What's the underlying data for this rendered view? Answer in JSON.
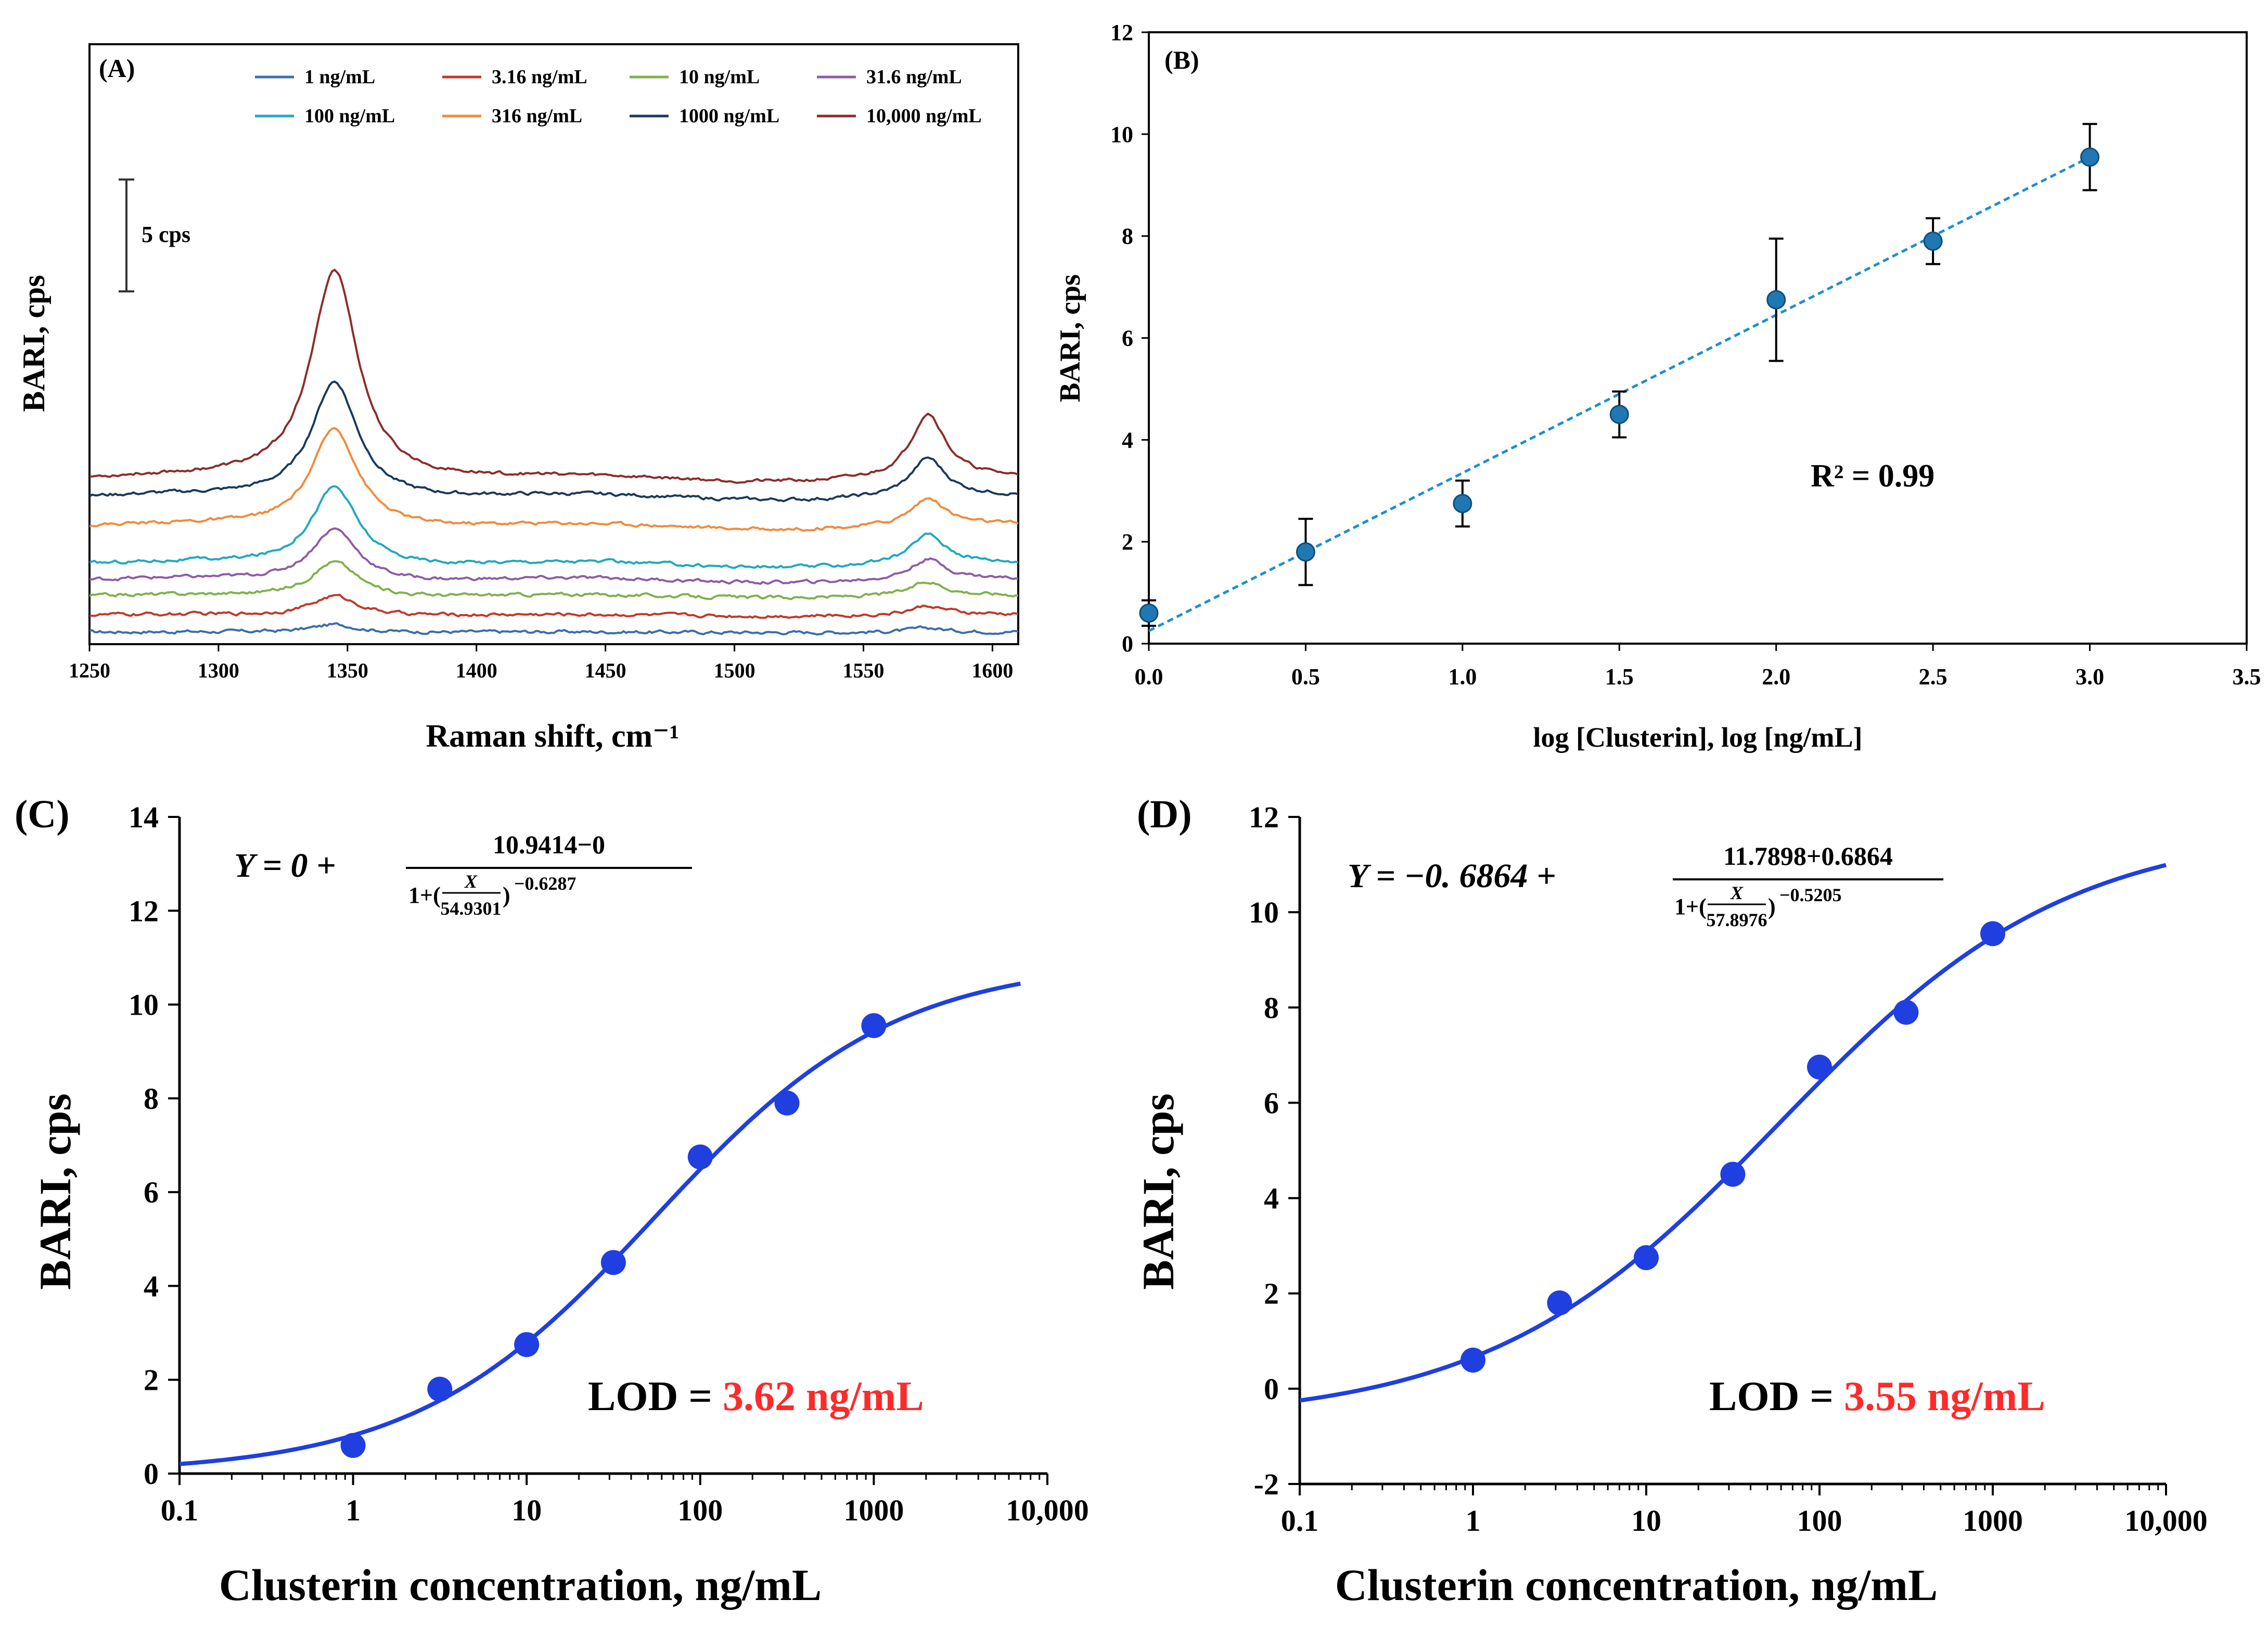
{
  "colors": {
    "axis": "#000000",
    "fit_blue": "#1f3fe0",
    "point_blue": "#1f3fe0",
    "panel_b_point": "#1f78b4",
    "panel_b_line": "#1f8fd0",
    "lod_red": "#ff2a2a"
  },
  "panels": {
    "a": {
      "label": "(A)",
      "scale_bar_label": "5 cps",
      "scale_bar_value": 5
    },
    "b": {
      "label": "(B)",
      "r2_label": "R² =  0.99"
    },
    "c": {
      "label": "(C)",
      "eq_left": "Y = 0 +",
      "eq_num": "10.9414−0",
      "eq_den_prefix": "1+(",
      "eq_den_x": "X",
      "eq_den_sub": "54.9301",
      "eq_den_suffix": ")",
      "eq_den_exp": "−0.6287",
      "lod_label": "LOD = ",
      "lod_value": "3.62 ng/mL"
    },
    "d": {
      "label": "(D)",
      "eq_left": "Y = −0. 6864 +",
      "eq_num": "11.7898+0.6864",
      "eq_den_prefix": "1+(",
      "eq_den_x": "X",
      "eq_den_sub": "57.8976",
      "eq_den_suffix": ")",
      "eq_den_exp": "−0.5205",
      "lod_label": "LOD = ",
      "lod_value": "3.55 ng/mL"
    }
  },
  "chart_data": [
    {
      "panel": "A",
      "type": "line",
      "title": "",
      "xlabel": "Raman shift, cm⁻¹",
      "ylabel": "BARI, cps",
      "xlim": [
        1250,
        1610
      ],
      "xticks": [
        "1250",
        "1300",
        "1350",
        "1400",
        "1450",
        "1500",
        "1550",
        "1600"
      ],
      "legend_position": "top",
      "peaks_cm": [
        1345,
        1575
      ],
      "series": [
        {
          "name": "1 ng/mL",
          "color": "#3a6fa8",
          "offset": 0.0,
          "peak1": 0.35,
          "peak2": 0.18
        },
        {
          "name": "3.16 ng/mL",
          "color": "#c0392b",
          "offset": 0.75,
          "peak1": 0.9,
          "peak2": 0.4
        },
        {
          "name": "10 ng/mL",
          "color": "#7fb24a",
          "offset": 1.6,
          "peak1": 1.6,
          "peak2": 0.6
        },
        {
          "name": "31.6 ng/mL",
          "color": "#8e5ca6",
          "offset": 2.3,
          "peak1": 2.4,
          "peak2": 0.9
        },
        {
          "name": "100 ng/mL",
          "color": "#1fa9be",
          "offset": 3.0,
          "peak1": 3.6,
          "peak2": 1.3
        },
        {
          "name": "316 ng/mL",
          "color": "#f28a3c",
          "offset": 4.7,
          "peak1": 4.5,
          "peak2": 1.2
        },
        {
          "name": "1000 ng/mL",
          "color": "#1b3a5c",
          "offset": 6.0,
          "peak1": 5.3,
          "peak2": 1.7
        },
        {
          "name": "10,000 ng/mL",
          "color": "#8b2d2a",
          "offset": 6.8,
          "peak1": 9.5,
          "peak2": 2.9
        }
      ]
    },
    {
      "panel": "B",
      "type": "scatter",
      "title": "",
      "xlabel": "log [Clusterin], log [ng/mL]",
      "ylabel": "BARI, cps",
      "xlim": [
        0,
        3.5
      ],
      "ylim": [
        0,
        12
      ],
      "xticks": [
        "0.0",
        "0.5",
        "1.0",
        "1.5",
        "2.0",
        "2.5",
        "3.0",
        "3.5"
      ],
      "yticks": [
        "0",
        "2",
        "4",
        "6",
        "8",
        "10",
        "12"
      ],
      "x": [
        0.0,
        0.5,
        1.0,
        1.5,
        2.0,
        2.5,
        3.0
      ],
      "y": [
        0.6,
        1.8,
        2.75,
        4.5,
        6.75,
        7.9,
        9.55
      ],
      "error": [
        0.25,
        0.65,
        0.45,
        0.45,
        1.2,
        0.45,
        0.65
      ],
      "fit": {
        "slope": 3.1,
        "intercept": 0.25,
        "x_range": [
          0.0,
          3.0
        ]
      },
      "annotation": "R² =  0.99"
    },
    {
      "panel": "C",
      "type": "scatter",
      "title": "",
      "xlabel": "Clusterin concentration, ng/mL",
      "ylabel": "BARI, cps",
      "xscale": "log",
      "xlim": [
        0.1,
        10000
      ],
      "ylim": [
        0,
        14
      ],
      "xticks": [
        "0.1",
        "1",
        "10",
        "100",
        "1000",
        "10,000"
      ],
      "yticks": [
        "0",
        "2",
        "4",
        "6",
        "8",
        "10",
        "12",
        "14"
      ],
      "x": [
        1,
        3.16,
        10,
        31.6,
        100,
        316,
        1000
      ],
      "y": [
        0.6,
        1.8,
        2.75,
        4.5,
        6.75,
        7.9,
        9.55
      ],
      "fit": {
        "model": "4PL",
        "bottom": 0,
        "top": 10.9414,
        "ec50": 54.9301,
        "hill": -0.6287,
        "x_range": [
          0.1,
          7000
        ]
      },
      "annotation": "LOD = 3.62 ng/mL"
    },
    {
      "panel": "D",
      "type": "scatter",
      "title": "",
      "xlabel": "Clusterin concentration, ng/mL",
      "ylabel": "BARI, cps",
      "xscale": "log",
      "xlim": [
        0.1,
        10000
      ],
      "ylim": [
        -2,
        12
      ],
      "xticks": [
        "0.1",
        "1",
        "10",
        "100",
        "1000",
        "10,000"
      ],
      "yticks": [
        "-2",
        "0",
        "2",
        "4",
        "6",
        "8",
        "10",
        "12"
      ],
      "x": [
        1,
        3.16,
        10,
        31.6,
        100,
        316,
        1000
      ],
      "y": [
        0.6,
        1.8,
        2.75,
        4.5,
        6.75,
        7.9,
        9.55
      ],
      "fit": {
        "model": "4PL",
        "bottom": -0.6864,
        "top": 11.7898,
        "ec50": 57.8976,
        "hill": -0.5205,
        "x_range": [
          0.1,
          10000
        ]
      },
      "annotation": "LOD = 3.55 ng/mL"
    }
  ]
}
